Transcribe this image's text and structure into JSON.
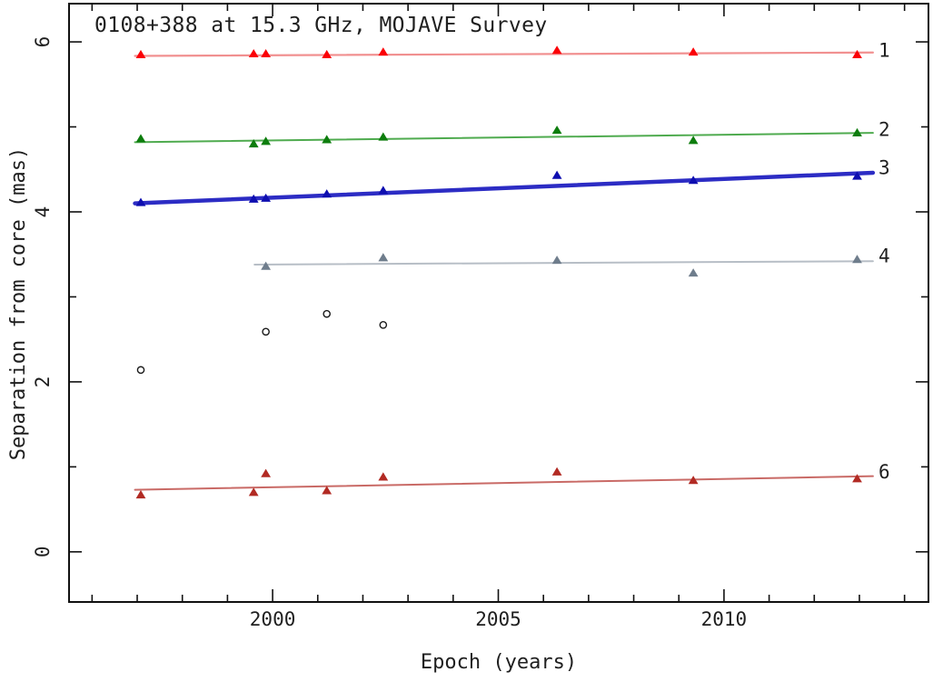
{
  "figure": {
    "title": "0108+388 at 15.3 GHz, MOJAVE Survey",
    "xlabel": "Epoch (years)",
    "ylabel": "Separation from core (mas)"
  },
  "chart_data": {
    "type": "scatter",
    "title": "0108+388 at 15.3 GHz, MOJAVE Survey",
    "xlabel": "Epoch (years)",
    "ylabel": "Separation from core (mas)",
    "xlim": [
      1995.49,
      2014.53
    ],
    "ylim": [
      -0.59,
      6.45
    ],
    "grid": false,
    "frame_color": "#111111",
    "text_color": "#1f1f1f",
    "tick_style": "inward-all-sides",
    "x_ticks": {
      "major": [
        2000,
        2005,
        2010
      ],
      "labels": [
        "2000",
        "2005",
        "2010"
      ],
      "minor": [
        1996,
        1997,
        1998,
        1999,
        2001,
        2002,
        2003,
        2004,
        2006,
        2007,
        2008,
        2009,
        2011,
        2012,
        2013,
        2014
      ]
    },
    "y_ticks": {
      "major": [
        0,
        2,
        4,
        6
      ],
      "labels": [
        "0",
        "2",
        "4",
        "6"
      ],
      "minor": [
        1,
        3,
        5
      ]
    },
    "series": [
      {
        "id": "1",
        "label": "1",
        "marker": "triangle",
        "point_color": "#fb0006",
        "line_color": "#f19090",
        "label_color": "#f19090",
        "line_width": 2.2,
        "points": [
          [
            1997.08,
            5.85
          ],
          [
            1999.58,
            5.86
          ],
          [
            1999.85,
            5.86
          ],
          [
            2001.2,
            5.85
          ],
          [
            2002.45,
            5.88
          ],
          [
            2006.3,
            5.9
          ],
          [
            2009.32,
            5.88
          ],
          [
            2012.95,
            5.85
          ]
        ],
        "fit": [
          [
            1996.95,
            5.835
          ],
          [
            2013.3,
            5.875
          ]
        ],
        "label_pos": [
          2013.55,
          5.9
        ]
      },
      {
        "id": "2",
        "label": "2",
        "marker": "triangle",
        "point_color": "#0d7d0d",
        "line_color": "#4fab4f",
        "label_color": "#82c882",
        "line_width": 2,
        "points": [
          [
            1997.08,
            4.86
          ],
          [
            1999.58,
            4.8
          ],
          [
            1999.85,
            4.83
          ],
          [
            2001.2,
            4.85
          ],
          [
            2002.45,
            4.88
          ],
          [
            2006.3,
            4.96
          ],
          [
            2009.32,
            4.84
          ],
          [
            2012.95,
            4.93
          ]
        ],
        "fit": [
          [
            1996.95,
            4.82
          ],
          [
            2013.3,
            4.93
          ]
        ],
        "label_pos": [
          2013.55,
          4.97
        ]
      },
      {
        "id": "3",
        "label": "3",
        "marker": "triangle",
        "point_color": "#0e0eb0",
        "line_color": "#2c2cc4",
        "label_color": "#8c8cdc",
        "line_width": 4.5,
        "points": [
          [
            1997.08,
            4.11
          ],
          [
            1999.58,
            4.15
          ],
          [
            1999.85,
            4.16
          ],
          [
            2001.2,
            4.21
          ],
          [
            2002.45,
            4.25
          ],
          [
            2006.3,
            4.43
          ],
          [
            2009.32,
            4.37
          ],
          [
            2012.95,
            4.42
          ]
        ],
        "fit": [
          [
            1996.95,
            4.1
          ],
          [
            2013.3,
            4.46
          ]
        ],
        "label_pos": [
          2013.55,
          4.52
        ]
      },
      {
        "id": "4",
        "label": "4",
        "marker": "triangle",
        "point_color": "#6f7d8c",
        "line_color": "#b7bec6",
        "label_color": "#b7bec6",
        "line_width": 2,
        "points": [
          [
            1999.85,
            3.36
          ],
          [
            2002.45,
            3.46
          ],
          [
            2006.3,
            3.43
          ],
          [
            2009.32,
            3.28
          ],
          [
            2012.95,
            3.44
          ]
        ],
        "fit": [
          [
            1999.6,
            3.38
          ],
          [
            2013.3,
            3.42
          ]
        ],
        "label_pos": [
          2013.55,
          3.48
        ]
      },
      {
        "id": "6",
        "label": "6",
        "marker": "triangle",
        "point_color": "#b22a23",
        "line_color": "#c96a66",
        "label_color": "#e39090",
        "line_width": 2,
        "points": [
          [
            1997.08,
            0.67
          ],
          [
            1999.58,
            0.7
          ],
          [
            1999.85,
            0.92
          ],
          [
            2001.2,
            0.72
          ],
          [
            2002.45,
            0.88
          ],
          [
            2006.3,
            0.94
          ],
          [
            2009.32,
            0.84
          ],
          [
            2012.95,
            0.86
          ]
        ],
        "fit": [
          [
            1996.95,
            0.73
          ],
          [
            2013.3,
            0.89
          ]
        ],
        "label_pos": [
          2013.55,
          0.94
        ]
      },
      {
        "id": "unlabeled",
        "label": "",
        "marker": "open-circle",
        "point_color": "#1a1a1a",
        "points": [
          [
            1997.08,
            2.14
          ],
          [
            1999.85,
            2.59
          ],
          [
            2001.2,
            2.8
          ],
          [
            2002.45,
            2.67
          ]
        ]
      }
    ]
  }
}
